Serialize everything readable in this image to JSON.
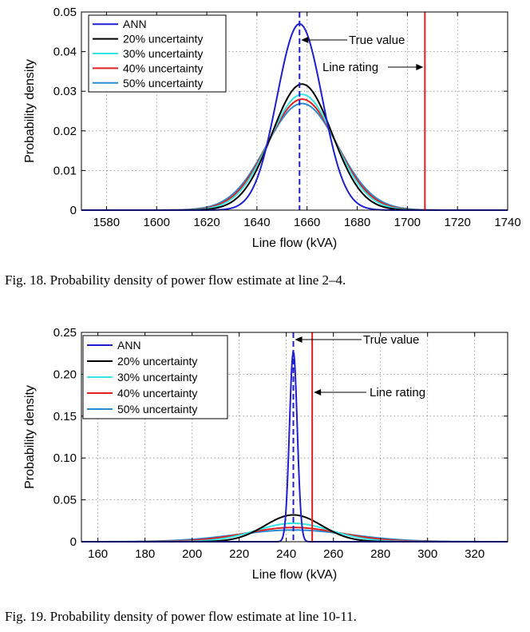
{
  "chart_data": [
    {
      "type": "line",
      "caption": "Fig. 18.   Probability density of power flow estimate at line 2–4.",
      "xlabel": "Line flow (kVA)",
      "ylabel": "Probability density",
      "xlim": [
        1570,
        1740
      ],
      "ylim": [
        0,
        0.05
      ],
      "xticks": [
        1580,
        1600,
        1620,
        1640,
        1660,
        1680,
        1700,
        1720,
        1740
      ],
      "yticks": [
        0,
        0.01,
        0.02,
        0.03,
        0.04,
        0.05
      ],
      "xtick_labels": [
        "1580",
        "1600",
        "1620",
        "1640",
        "1660",
        "1680",
        "1700",
        "1720",
        "1740"
      ],
      "ytick_labels": [
        "0",
        "0.01",
        "0.02",
        "0.03",
        "0.04",
        "0.05"
      ],
      "grid": true,
      "legend_position": "top-left",
      "series": [
        {
          "name": "ANN",
          "color": "#1f1fd0",
          "mean": 1657,
          "peak": 0.047
        },
        {
          "name": "20% uncertainty",
          "color": "#000000",
          "mean": 1658,
          "peak": 0.0318
        },
        {
          "name": "30% uncertainty",
          "color": "#33e6e6",
          "mean": 1658,
          "peak": 0.0292
        },
        {
          "name": "40% uncertainty",
          "color": "#e02020",
          "mean": 1658,
          "peak": 0.028
        },
        {
          "name": "50% uncertainty",
          "color": "#2a8bd0",
          "mean": 1658,
          "peak": 0.0269
        }
      ],
      "true_value": {
        "x": 1657,
        "label": "True value",
        "color": "#1f1fd0"
      },
      "line_rating": {
        "x": 1707,
        "label": "Line rating",
        "color": "#e02020"
      }
    },
    {
      "type": "line",
      "caption": "Fig. 19.   Probability density of power flow estimate at line 10-11.",
      "xlabel": "Line flow (kVA)",
      "ylabel": "Probability density",
      "xlim": [
        153,
        334
      ],
      "ylim": [
        0,
        0.25
      ],
      "xticks": [
        160,
        180,
        200,
        220,
        240,
        260,
        280,
        300,
        320
      ],
      "yticks": [
        0,
        0.05,
        0.1,
        0.15,
        0.2,
        0.25
      ],
      "xtick_labels": [
        "160",
        "180",
        "200",
        "220",
        "240",
        "260",
        "280",
        "300",
        "320"
      ],
      "ytick_labels": [
        "0",
        "0.05",
        "0.10",
        "0.15",
        "0.20",
        "0.25"
      ],
      "grid": true,
      "legend_position": "top-left",
      "series": [
        {
          "name": "ANN",
          "color": "#1f1fd0",
          "mean": 243,
          "peak": 0.227
        },
        {
          "name": "20% uncertainty",
          "color": "#000000",
          "mean": 243,
          "peak": 0.032
        },
        {
          "name": "30% uncertainty",
          "color": "#33e6e6",
          "mean": 243,
          "peak": 0.022
        },
        {
          "name": "40% uncertainty",
          "color": "#e02020",
          "mean": 243,
          "peak": 0.017
        },
        {
          "name": "50% uncertainty",
          "color": "#2a8bd0",
          "mean": 243,
          "peak": 0.014
        }
      ],
      "true_value": {
        "x": 243,
        "label": "True value",
        "color": "#1f1fd0"
      },
      "line_rating": {
        "x": 251,
        "label": "Line rating",
        "color": "#e02020"
      }
    }
  ]
}
